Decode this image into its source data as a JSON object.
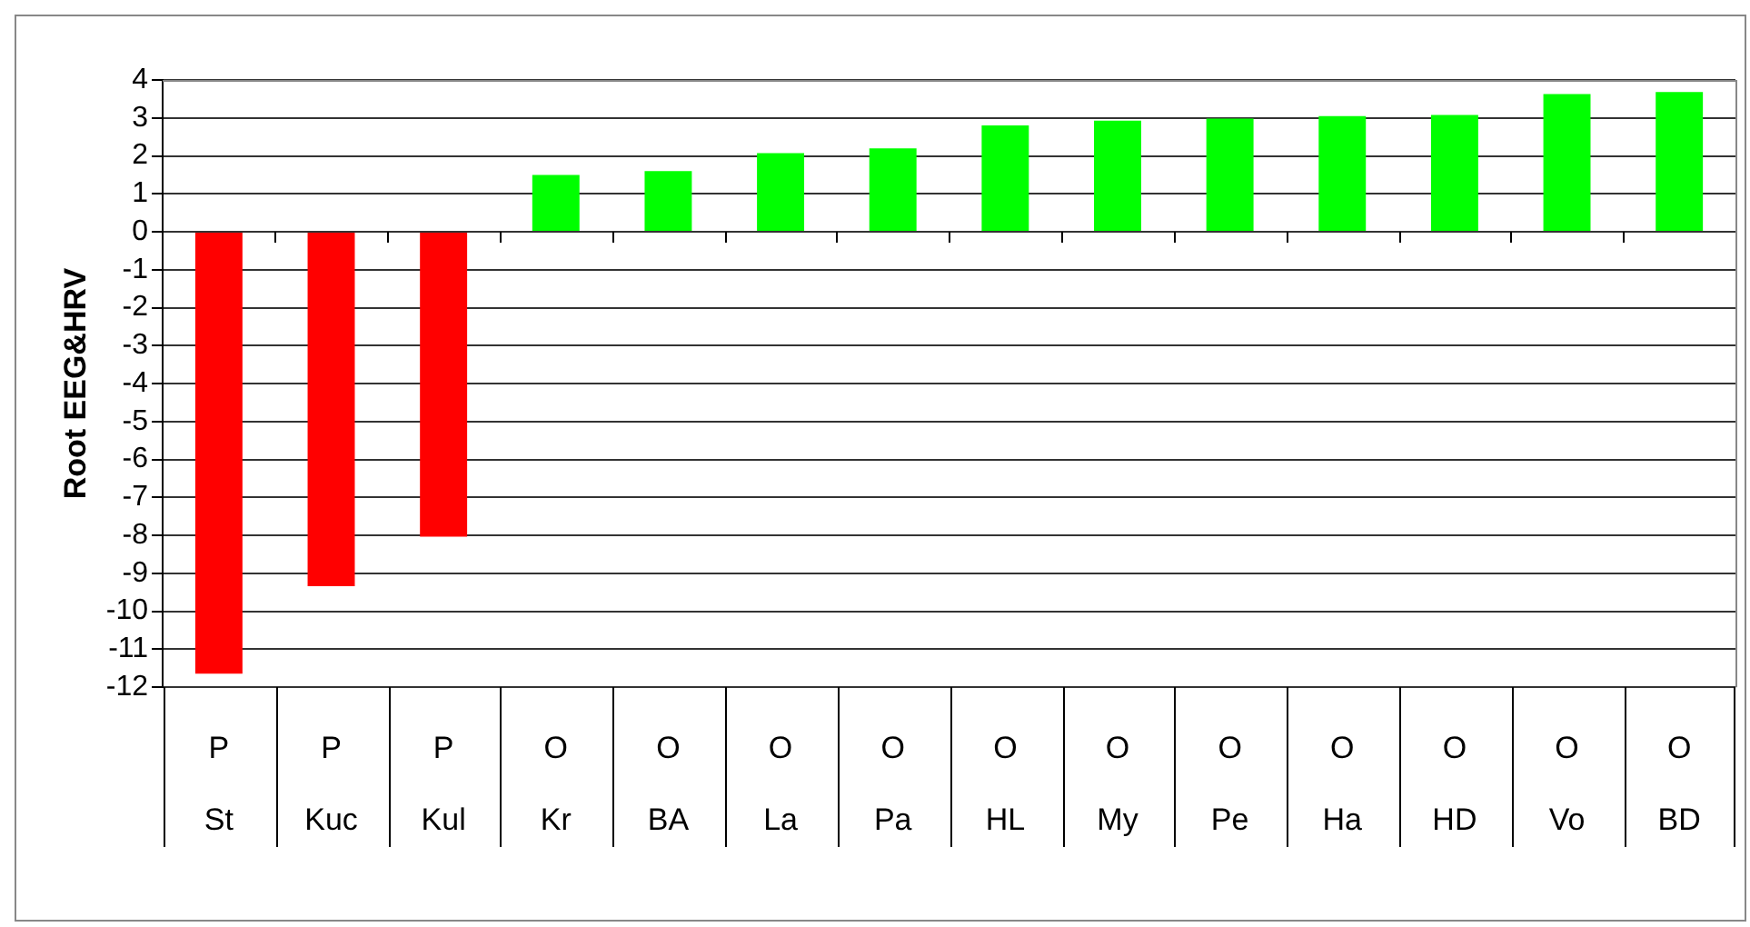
{
  "chart_data": {
    "type": "bar",
    "ylabel": "Root EEG&HRV",
    "categories": [
      "P\nSt",
      "P\nKuc",
      "P\nKul",
      "O\nKr",
      "O\nBA",
      "O\nLa",
      "O\nPa",
      "O\nHL",
      "O\nMy",
      "O\nPe",
      "O\nHa",
      "O\nHD",
      "O\nVo",
      "O\nBD"
    ],
    "values": [
      -11.64,
      -9.34,
      -8.03,
      1.5,
      1.6,
      2.07,
      2.2,
      2.8,
      2.93,
      2.98,
      3.05,
      3.08,
      3.63,
      3.68
    ],
    "colors": [
      "#ff0000",
      "#ff0000",
      "#ff0000",
      "#00ff00",
      "#00ff00",
      "#00ff00",
      "#00ff00",
      "#00ff00",
      "#00ff00",
      "#00ff00",
      "#00ff00",
      "#00ff00",
      "#00ff00",
      "#00ff00"
    ],
    "ylim": [
      -12,
      4
    ],
    "yticks": [
      -12,
      -11,
      -10,
      -9,
      -8,
      -7,
      -6,
      -5,
      -4,
      -3,
      -2,
      -1,
      0,
      1,
      2,
      3,
      4
    ],
    "grid": "y",
    "legend": false
  }
}
